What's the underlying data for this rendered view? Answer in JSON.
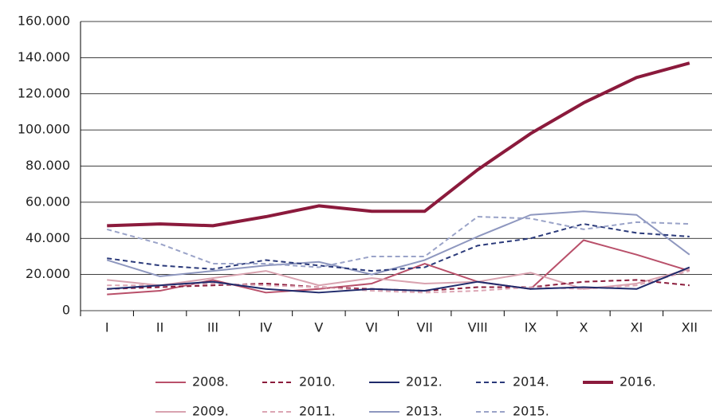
{
  "chart_data": {
    "type": "line",
    "categories": [
      "I",
      "II",
      "III",
      "IV",
      "V",
      "VI",
      "VII",
      "VIII",
      "IX",
      "X",
      "XI",
      "XII"
    ],
    "ylim": [
      0,
      160000
    ],
    "yticks": [
      0,
      {
        "value": 20000,
        "label": "20.000"
      },
      {
        "value": 40000,
        "label": "40.000"
      },
      {
        "value": 60000,
        "label": "60.000"
      },
      {
        "value": 80000,
        "label": "80.000"
      },
      {
        "value": 100000,
        "label": "100.000"
      },
      {
        "value": 120000,
        "label": "120.000"
      },
      {
        "value": 140000,
        "label": "140.000"
      },
      {
        "value": 160000,
        "label": "160.000"
      }
    ],
    "grid": true,
    "legend": "bottom",
    "series": [
      {
        "name": "2008.",
        "color": "#b9506a",
        "style": "solid",
        "values": [
          9000,
          11000,
          17000,
          10000,
          12000,
          15000,
          26000,
          16000,
          12000,
          39000,
          31000,
          22000
        ]
      },
      {
        "name": "2009.",
        "color": "#d9a3b0",
        "style": "solid",
        "values": [
          17000,
          14000,
          18000,
          22000,
          14000,
          18000,
          15000,
          16000,
          21000,
          12000,
          15000,
          23000
        ]
      },
      {
        "name": "2010.",
        "color": "#8b1c3c",
        "style": "dashed",
        "values": [
          12000,
          13000,
          14000,
          15000,
          13000,
          12000,
          11000,
          13000,
          13000,
          16000,
          17000,
          14000
        ]
      },
      {
        "name": "2011.",
        "color": "#dca6b4",
        "style": "dashed",
        "values": [
          14000,
          14000,
          15000,
          14000,
          13000,
          11000,
          10000,
          11000,
          13000,
          12000,
          14000,
          22000
        ]
      },
      {
        "name": "2012.",
        "color": "#1f2a6b",
        "style": "solid",
        "values": [
          12000,
          14000,
          16000,
          12000,
          10000,
          12000,
          11000,
          16000,
          12000,
          13000,
          12000,
          24000
        ]
      },
      {
        "name": "2013.",
        "color": "#8e97bf",
        "style": "solid",
        "values": [
          28000,
          19000,
          22000,
          25000,
          27000,
          20000,
          28000,
          41000,
          53000,
          55000,
          53000,
          31000
        ]
      },
      {
        "name": "2014.",
        "color": "#2b3a7a",
        "style": "dashed",
        "values": [
          29000,
          25000,
          23000,
          28000,
          25000,
          22000,
          24000,
          36000,
          40000,
          48000,
          43000,
          41000
        ]
      },
      {
        "name": "2015.",
        "color": "#9aa3c8",
        "style": "dashed",
        "values": [
          45000,
          37000,
          26000,
          26000,
          24000,
          30000,
          30000,
          52000,
          51000,
          45000,
          49000,
          48000
        ]
      },
      {
        "name": "2016.",
        "color": "#8b1a3c",
        "style": "bold",
        "values": [
          47000,
          48000,
          47000,
          52000,
          58000,
          55000,
          55000,
          78000,
          98000,
          115000,
          129000,
          137000
        ]
      }
    ]
  }
}
